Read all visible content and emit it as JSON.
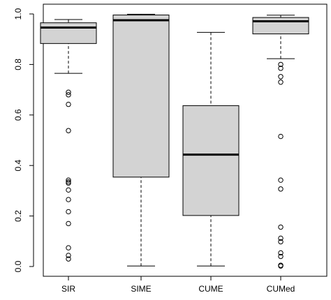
{
  "chart_data": {
    "type": "boxplot",
    "title": "",
    "xlabel": "",
    "ylabel": "",
    "ylim": [
      0,
      1
    ],
    "yticks": [
      0.0,
      0.2,
      0.4,
      0.6,
      0.8,
      1.0
    ],
    "ytick_labels": [
      "0.0",
      "0.2",
      "0.4",
      "0.6",
      "0.8",
      "1.0"
    ],
    "grid": false,
    "box_fill": "#d3d3d3",
    "categories": [
      "SIR",
      "SIME",
      "CUME",
      "CUMed"
    ],
    "boxes": [
      {
        "label": "SIR",
        "whisker_low": 0.765,
        "q1": 0.883,
        "median": 0.946,
        "q3": 0.965,
        "whisker_high": 0.978,
        "outliers": [
          0.69,
          0.68,
          0.642,
          0.538,
          0.342,
          0.335,
          0.33,
          0.303,
          0.265,
          0.217,
          0.17,
          0.074,
          0.044,
          0.03
        ]
      },
      {
        "label": "SIME",
        "whisker_low": 0.002,
        "q1": 0.354,
        "median": 0.975,
        "q3": 0.996,
        "whisker_high": 0.999,
        "outliers": []
      },
      {
        "label": "CUME",
        "whisker_low": 0.002,
        "q1": 0.202,
        "median": 0.443,
        "q3": 0.637,
        "whisker_high": 0.927,
        "outliers": []
      },
      {
        "label": "CUMed",
        "whisker_low": 0.823,
        "q1": 0.921,
        "median": 0.971,
        "q3": 0.986,
        "whisker_high": 0.995,
        "outliers": [
          0.8,
          0.785,
          0.752,
          0.73,
          0.515,
          0.342,
          0.307,
          0.156,
          0.112,
          0.098,
          0.054,
          0.04,
          0.005,
          0.002
        ]
      }
    ]
  }
}
